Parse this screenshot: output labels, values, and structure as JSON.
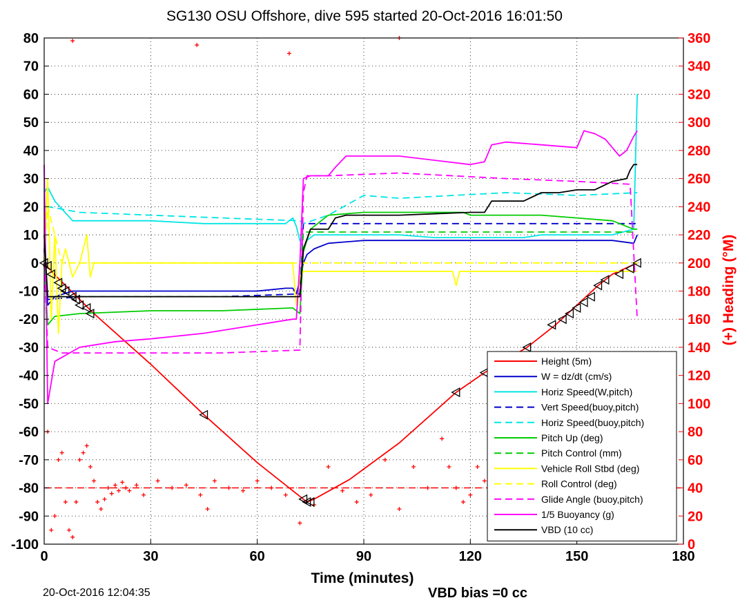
{
  "chart_data": {
    "type": "line",
    "title": "SG130 OSU Offshore, dive 595 started 20-Oct-2016 16:01:50",
    "xlabel": "Time (minutes)",
    "ylabel_right": "(+) Heading (°M)",
    "xlim": [
      0,
      180
    ],
    "ylim": [
      -100,
      80
    ],
    "ylim_right": [
      0,
      360
    ],
    "xticks": [
      0,
      30,
      60,
      90,
      120,
      150,
      180
    ],
    "yticks": [
      -100,
      -90,
      -80,
      -70,
      -60,
      -50,
      -40,
      -30,
      -20,
      -10,
      0,
      10,
      20,
      30,
      40,
      50,
      60,
      70,
      80
    ],
    "yticks_right": [
      0,
      20,
      40,
      60,
      80,
      100,
      120,
      140,
      160,
      180,
      200,
      220,
      240,
      260,
      280,
      300,
      320,
      340,
      360
    ],
    "grid": "dotted",
    "legend_position": "bottom-right",
    "legend": [
      {
        "label": "Height (5m)",
        "color": "#ff0000",
        "style": "solid"
      },
      {
        "label": "W = dz/dt (cm/s)",
        "color": "#0000cc",
        "style": "solid"
      },
      {
        "label": "Horiz Speed(W,pitch)",
        "color": "#00e5e5",
        "style": "solid"
      },
      {
        "label": "Vert Speed(buoy,pitch)",
        "color": "#0000cc",
        "style": "dashed"
      },
      {
        "label": "Horiz Speed(buoy,pitch)",
        "color": "#00e5e5",
        "style": "dashed"
      },
      {
        "label": "Pitch Up (deg)",
        "color": "#00cc00",
        "style": "solid"
      },
      {
        "label": "Pitch Control (mm)",
        "color": "#00cc00",
        "style": "dashed"
      },
      {
        "label": "Vehicle Roll Stbd (deg)",
        "color": "#ffff00",
        "style": "solid"
      },
      {
        "label": "Roll Control (deg)",
        "color": "#ffff00",
        "style": "dashed"
      },
      {
        "label": "Glide Angle (buoy,pitch)",
        "color": "#ff00ff",
        "style": "dashed"
      },
      {
        "label": "1/5 Buoyancy (g)",
        "color": "#ff00ff",
        "style": "solid"
      },
      {
        "label": "VBD (10 cc)",
        "color": "#000000",
        "style": "solid"
      }
    ],
    "series": [
      {
        "name": "Height (5m)",
        "color": "#ff0000",
        "dash": "",
        "x": [
          0,
          2,
          6,
          10,
          14,
          30,
          45,
          60,
          72,
          74,
          76,
          86,
          100,
          116,
          124,
          136,
          144,
          150,
          156,
          160,
          167
        ],
        "y": [
          0,
          -3,
          -8,
          -13,
          -18,
          -36,
          -54,
          -71,
          -83,
          -85,
          -84,
          -77,
          -64,
          -46,
          -39,
          -30,
          -22,
          -15,
          -8,
          -4,
          0
        ]
      },
      {
        "name": "W = dz/dt (cm/s)",
        "color": "#0000cc",
        "dash": "",
        "x": [
          0,
          1,
          3,
          8,
          15,
          30,
          45,
          60,
          68,
          70,
          71,
          72,
          73,
          74,
          76,
          80,
          90,
          100,
          110,
          120,
          130,
          135,
          140,
          150,
          160,
          166,
          167
        ],
        "y": [
          5,
          -15,
          -12,
          -10,
          -10,
          -10,
          -10,
          -10,
          -9,
          -9,
          -11,
          -6,
          0,
          3,
          5,
          7,
          8,
          8,
          8,
          8,
          8,
          8,
          8,
          8,
          8,
          7,
          10
        ]
      },
      {
        "name": "Horiz Speed(W,pitch)",
        "color": "#00e5e5",
        "dash": "",
        "x": [
          0,
          1,
          3,
          8,
          15,
          24,
          30,
          45,
          60,
          68,
          70,
          71,
          72,
          73,
          74,
          76,
          80,
          90,
          100,
          110,
          120,
          130,
          135,
          140,
          150,
          160,
          166,
          167
        ],
        "y": [
          25,
          27,
          22,
          15,
          15,
          15,
          15,
          14,
          14,
          14,
          16,
          13,
          8,
          5,
          8,
          10,
          10,
          10,
          10,
          9,
          9,
          9,
          9,
          10,
          10,
          10,
          12,
          60
        ]
      },
      {
        "name": "Vert Speed(buoy,pitch)",
        "color": "#0000cc",
        "dash": "10,6",
        "x": [
          0,
          1,
          10,
          30,
          50,
          72,
          73,
          80,
          100,
          130,
          150,
          167
        ],
        "y": [
          0,
          -13,
          -12,
          -12,
          -12,
          -11,
          14,
          14,
          14,
          14,
          14,
          14
        ]
      },
      {
        "name": "Horiz Speed(buoy,pitch)",
        "color": "#00e5e5",
        "dash": "10,6",
        "x": [
          0,
          1,
          10,
          30,
          50,
          72,
          73,
          80,
          90,
          100,
          130,
          150,
          167
        ],
        "y": [
          0,
          20,
          18,
          17,
          16,
          15,
          14,
          17,
          24,
          23,
          25,
          24,
          25
        ]
      },
      {
        "name": "Pitch Up (deg)",
        "color": "#00cc00",
        "dash": "",
        "x": [
          0,
          1,
          3,
          10,
          30,
          50,
          70,
          72,
          73,
          75,
          80,
          90,
          100,
          116,
          118,
          120,
          130,
          140,
          150,
          160,
          166,
          167
        ],
        "y": [
          0,
          -22,
          -19,
          -18,
          -17,
          -17,
          -16,
          -18,
          4,
          12,
          17,
          18,
          18,
          18,
          18,
          17,
          17,
          17,
          16,
          15,
          12,
          12
        ]
      },
      {
        "name": "Pitch Control (mm)",
        "color": "#00cc00",
        "dash": "10,6",
        "x": [
          0,
          1,
          10,
          30,
          50,
          72,
          73,
          90,
          120,
          150,
          167
        ],
        "y": [
          0,
          -12,
          -12,
          -12,
          -12,
          -12,
          11,
          11,
          11,
          11,
          11
        ]
      },
      {
        "name": "Vehicle Roll Stbd (deg)",
        "color": "#ffff00",
        "dash": "",
        "x": [
          0,
          1,
          2,
          3,
          4,
          5,
          6,
          8,
          10,
          12,
          13,
          14,
          30,
          50,
          60,
          70,
          71,
          72,
          73,
          80,
          100,
          115,
          116,
          117,
          120,
          130,
          140,
          150,
          160,
          167
        ],
        "y": [
          0,
          30,
          -20,
          10,
          -25,
          0,
          5,
          -5,
          0,
          10,
          -5,
          0,
          0,
          0,
          0,
          0,
          -15,
          -5,
          -3,
          -3,
          -3,
          -3,
          -8,
          -3,
          -3,
          -3,
          -3,
          -3,
          -3,
          -3
        ]
      },
      {
        "name": "Roll Control (deg)",
        "color": "#ffff00",
        "dash": "10,6",
        "x": [
          0,
          1,
          5,
          10,
          30,
          50,
          72,
          73,
          80,
          120,
          140,
          167
        ],
        "y": [
          0,
          20,
          0,
          0,
          0,
          0,
          0,
          0,
          0,
          0,
          0,
          0
        ]
      },
      {
        "name": "Glide Angle (buoy,pitch)",
        "color": "#ff00ff",
        "dash": "10,6",
        "x": [
          0,
          1,
          5,
          10,
          30,
          50,
          72,
          73,
          74,
          80,
          100,
          130,
          150,
          165,
          167
        ],
        "y": [
          0,
          -30,
          -32,
          -32,
          -32,
          -32,
          -31,
          25,
          31,
          31,
          32,
          30,
          29,
          28,
          -20
        ]
      },
      {
        "name": "1/5 Buoyancy (g)",
        "color": "#ff00ff",
        "dash": "",
        "x": [
          0,
          1,
          3,
          10,
          20,
          30,
          45,
          60,
          70,
          71,
          72,
          73,
          75,
          80,
          82,
          85,
          90,
          100,
          120,
          124,
          126,
          130,
          140,
          150,
          152,
          155,
          158,
          160,
          162,
          164,
          166,
          167
        ],
        "y": [
          35,
          -50,
          -35,
          -30,
          -28,
          -27,
          -25,
          -22,
          -20,
          -20,
          0,
          30,
          31,
          31,
          34,
          38,
          38,
          38,
          35,
          36,
          42,
          43,
          42,
          41,
          47,
          46,
          44,
          41,
          38,
          40,
          45,
          47
        ]
      },
      {
        "name": "VBD (10 cc)",
        "color": "#000000",
        "dash": "",
        "x": [
          0,
          1,
          15,
          30,
          50,
          70,
          72,
          73,
          75,
          78,
          80,
          82,
          85,
          100,
          120,
          124,
          126,
          135,
          140,
          145,
          150,
          155,
          160,
          164,
          165,
          166,
          167
        ],
        "y": [
          10,
          -12,
          -12,
          -12,
          -12,
          -12,
          -12,
          5,
          12,
          12,
          12,
          16,
          17,
          17,
          18,
          18,
          22,
          22,
          25,
          25,
          26,
          26,
          29,
          30,
          33,
          35,
          35
        ]
      }
    ],
    "heading_scatter": {
      "color": "#ff0000",
      "axis": "right",
      "x": [
        1,
        2,
        3,
        4,
        5,
        6,
        7,
        8,
        9,
        10,
        11,
        12,
        13,
        14,
        15,
        16,
        17,
        18,
        19,
        20,
        21,
        22,
        23,
        24,
        26,
        28,
        32,
        36,
        40,
        44,
        46,
        48,
        52,
        56,
        60,
        64,
        68,
        72,
        76,
        80,
        84,
        88,
        92,
        96,
        100,
        104,
        108,
        112,
        114,
        116,
        118,
        120,
        122,
        124,
        128,
        132,
        136,
        140,
        8,
        43,
        69,
        100
      ],
      "y": [
        80,
        10,
        20,
        60,
        65,
        30,
        10,
        5,
        30,
        60,
        65,
        70,
        55,
        45,
        30,
        25,
        32,
        40,
        36,
        42,
        38,
        44,
        40,
        38,
        42,
        35,
        45,
        40,
        42,
        35,
        25,
        45,
        40,
        38,
        45,
        40,
        35,
        15,
        28,
        55,
        38,
        30,
        35,
        60,
        25,
        55,
        40,
        75,
        55,
        40,
        30,
        35,
        55,
        45,
        35,
        40,
        45,
        60,
        358,
        355,
        349,
        360
      ]
    },
    "markers": {
      "symbol": "triangle-left",
      "color": "#000000",
      "x": [
        0,
        1,
        2,
        4,
        5,
        6,
        8,
        9,
        10,
        12,
        13,
        45,
        73,
        74,
        75,
        116,
        124,
        136,
        143,
        146,
        148,
        150,
        152,
        154,
        156,
        158,
        162,
        165,
        167
      ],
      "y": [
        0,
        -1,
        -4,
        -7,
        -9,
        -10,
        -12,
        -13,
        -15,
        -16,
        -18,
        -54,
        -84,
        -85,
        -85,
        -46,
        -39,
        -30,
        -22,
        -20,
        -18,
        -16,
        -14,
        -12,
        -8,
        -6,
        -4,
        -2,
        0
      ]
    },
    "reference_line": {
      "y": -80,
      "color": "#ff0000",
      "dash": "10,6"
    },
    "footer_left": "20-Oct-2016 12:04:35",
    "footer_right": "VBD bias =0 cc"
  }
}
